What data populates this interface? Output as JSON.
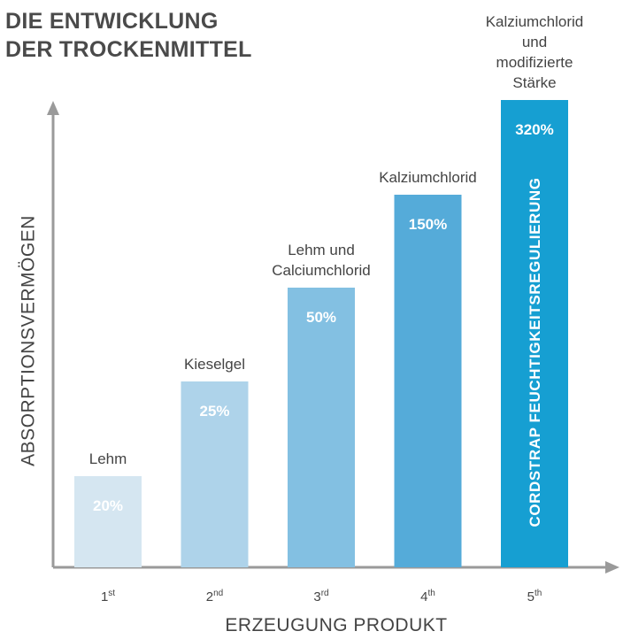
{
  "title": {
    "line1": "DIE ENTWICKLUNG",
    "line2": "DER TROCKENMITTEL"
  },
  "colors": {
    "axis": "#9a9a9a",
    "text": "#444444",
    "title": "#4a4a4a"
  },
  "chart_data": {
    "type": "bar",
    "xlabel": "ERZEUGUNG PRODUKT",
    "ylabel": "ABSORPTIONSVERMÖGEN",
    "y_scale": "not linear (visual ranking only)",
    "grid": false,
    "legend": "none",
    "categories": [
      {
        "num": "1",
        "sup": "st"
      },
      {
        "num": "2",
        "sup": "nd"
      },
      {
        "num": "3",
        "sup": "rd"
      },
      {
        "num": "4",
        "sup": "th"
      },
      {
        "num": "5",
        "sup": "th"
      }
    ],
    "bars": [
      {
        "label": [
          "Lehm"
        ],
        "value": 20,
        "value_label": "20%",
        "color": "#d5e6f1",
        "value_color": "#ffffff"
      },
      {
        "label": [
          "Kieselgel"
        ],
        "value": 25,
        "value_label": "25%",
        "color": "#aed3ea",
        "value_color": "#ffffff"
      },
      {
        "label": [
          "Lehm und",
          "Calciumchlorid"
        ],
        "value": 50,
        "value_label": "50%",
        "color": "#83c0e2",
        "value_color": "#ffffff"
      },
      {
        "label": [
          "Kalziumchlorid"
        ],
        "value": 150,
        "value_label": "150%",
        "color": "#55abd9",
        "value_color": "#ffffff"
      },
      {
        "label": [
          "Kalziumchlorid",
          "und",
          "modifizierte",
          "Stärke"
        ],
        "value": 320,
        "value_label": "320%",
        "color": "#169fd2",
        "value_color": "#ffffff",
        "inner_label": "CORDSTRAP FEUCHTIGKEITSREGULIERUNG"
      }
    ]
  }
}
